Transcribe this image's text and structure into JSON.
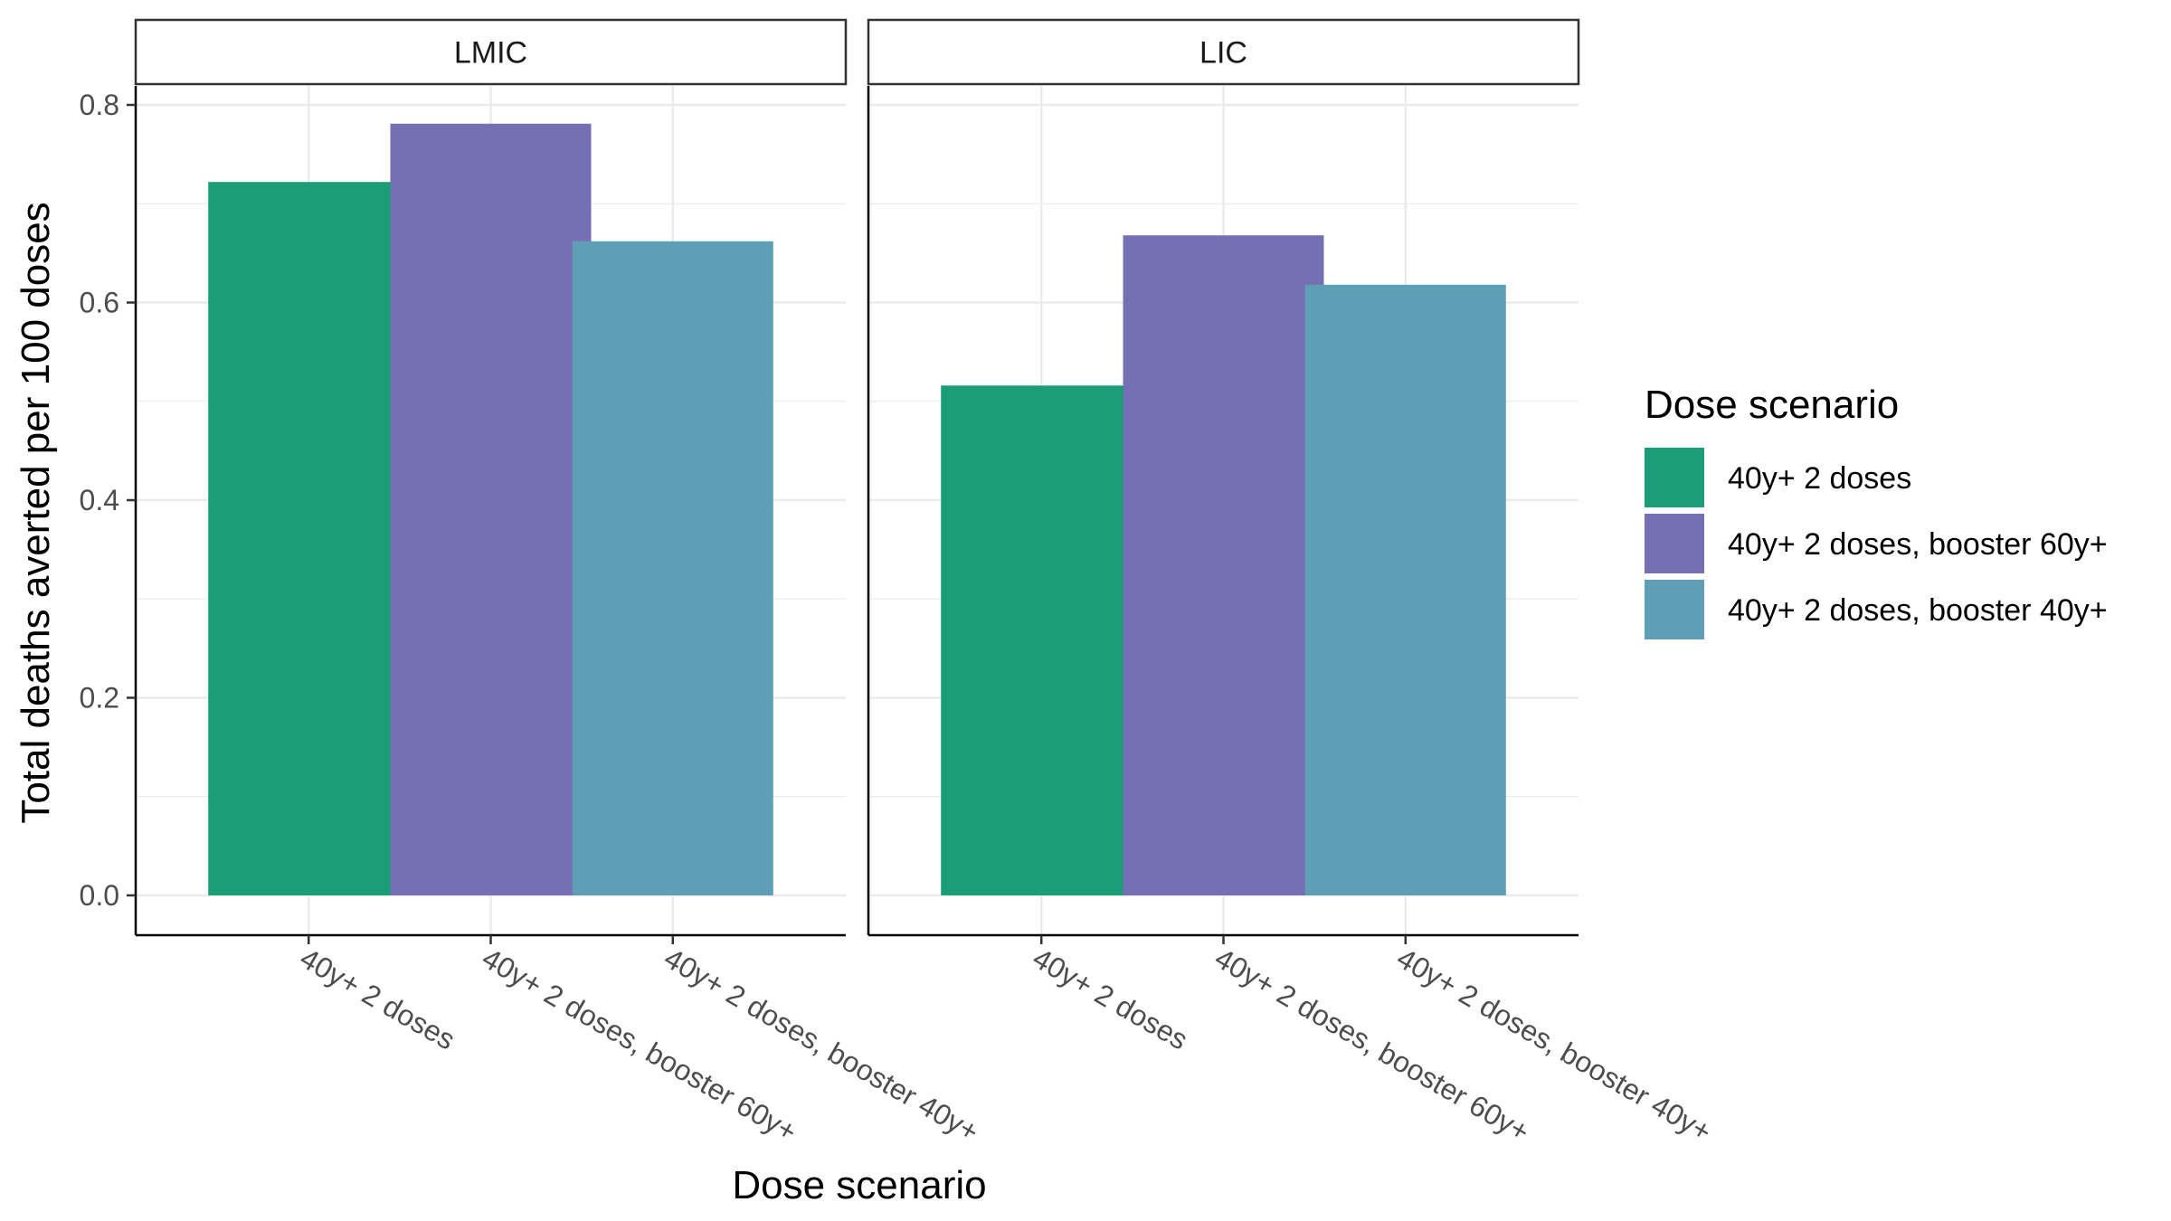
{
  "chart_data": {
    "type": "bar",
    "xlabel": "Dose scenario",
    "ylabel": "Total deaths averted per 100 doses",
    "ylim": [
      0,
      0.8
    ],
    "y_ticks": [
      "0.0",
      "0.2",
      "0.4",
      "0.6",
      "0.8"
    ],
    "grid": true,
    "categories": [
      "40y+ 2 doses",
      "40y+ 2 doses, booster 60y+",
      "40y+ 2 doses, booster 40y+"
    ],
    "colors": [
      "#1b9e77",
      "#7570b3",
      "#5e9fb6"
    ],
    "facets": [
      {
        "label": "LMIC",
        "values": [
          0.722,
          0.781,
          0.662
        ]
      },
      {
        "label": "LIC",
        "values": [
          0.516,
          0.668,
          0.618
        ]
      }
    ],
    "legend": {
      "title": "Dose scenario",
      "position": "right",
      "items": [
        "40y+ 2 doses",
        "40y+ 2 doses, booster 60y+",
        "40y+ 2 doses, booster 40y+"
      ]
    }
  }
}
